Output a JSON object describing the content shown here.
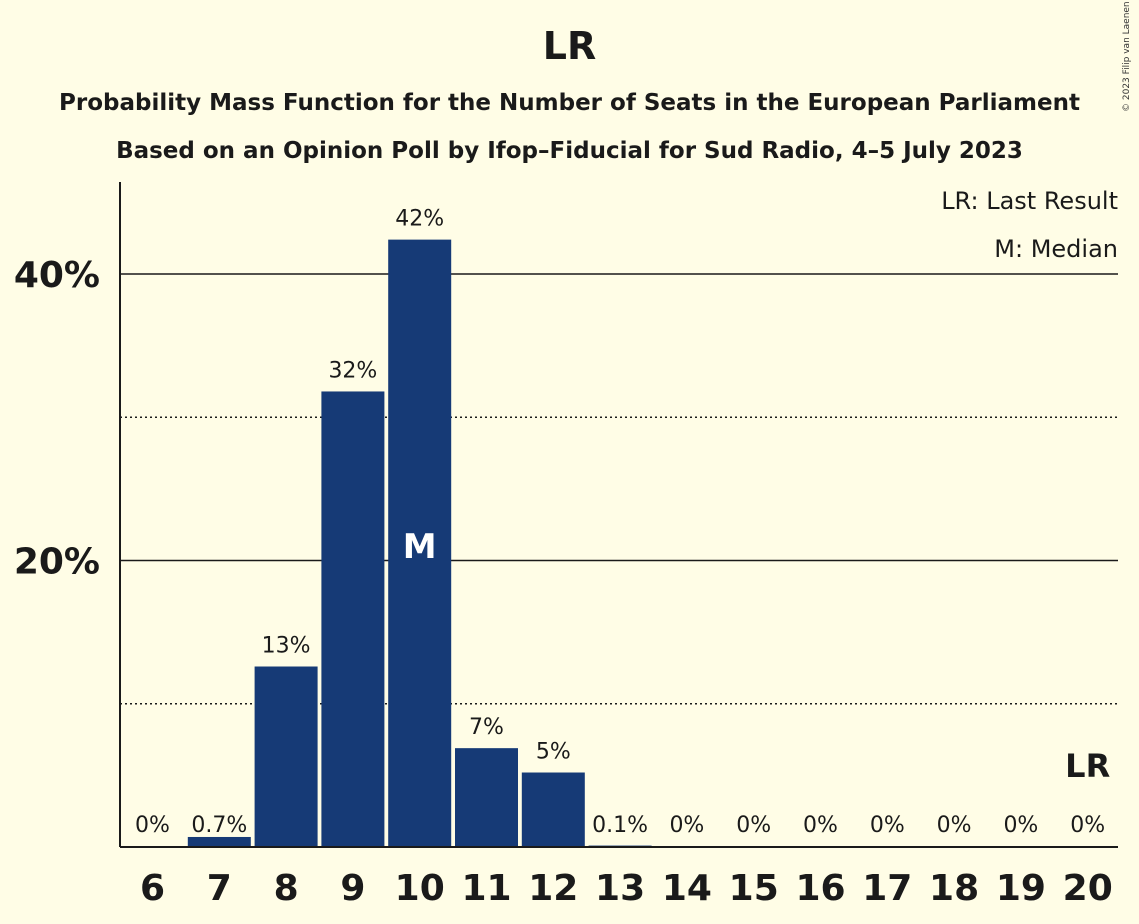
{
  "title": "LR",
  "subtitle1": "Probability Mass Function for the Number of Seats in the European Parliament",
  "subtitle2": "Based on an Opinion Poll by Ifop–Fiducial for Sud Radio, 4–5 July 2023",
  "copyright": "© 2023 Filip van Laenen",
  "legend": {
    "last_result": "LR: Last Result",
    "median": "M: Median"
  },
  "colors": {
    "bar": "#163a76",
    "background": "#fffde6"
  },
  "chart_data": {
    "type": "bar",
    "categories": [
      "6",
      "7",
      "8",
      "9",
      "10",
      "11",
      "12",
      "13",
      "14",
      "15",
      "16",
      "17",
      "18",
      "19",
      "20"
    ],
    "values": [
      0,
      0.7,
      12.6,
      31.8,
      42.4,
      6.9,
      5.2,
      0.1,
      0,
      0,
      0,
      0,
      0,
      0,
      0
    ],
    "data_labels": [
      "0%",
      "0.7%",
      "13%",
      "32%",
      "42%",
      "7%",
      "5%",
      "0.1%",
      "0%",
      "0%",
      "0%",
      "0%",
      "0%",
      "0%",
      "0%"
    ],
    "ylim": [
      0,
      46
    ],
    "yticks": [
      20,
      40
    ],
    "ytick_labels": [
      "20%",
      "40%"
    ],
    "minor_gridlines": [
      10,
      30
    ],
    "median_category": "10",
    "median_marker": "M",
    "last_result_category": "20",
    "last_result_marker": "LR",
    "legend_position": "top-right"
  }
}
